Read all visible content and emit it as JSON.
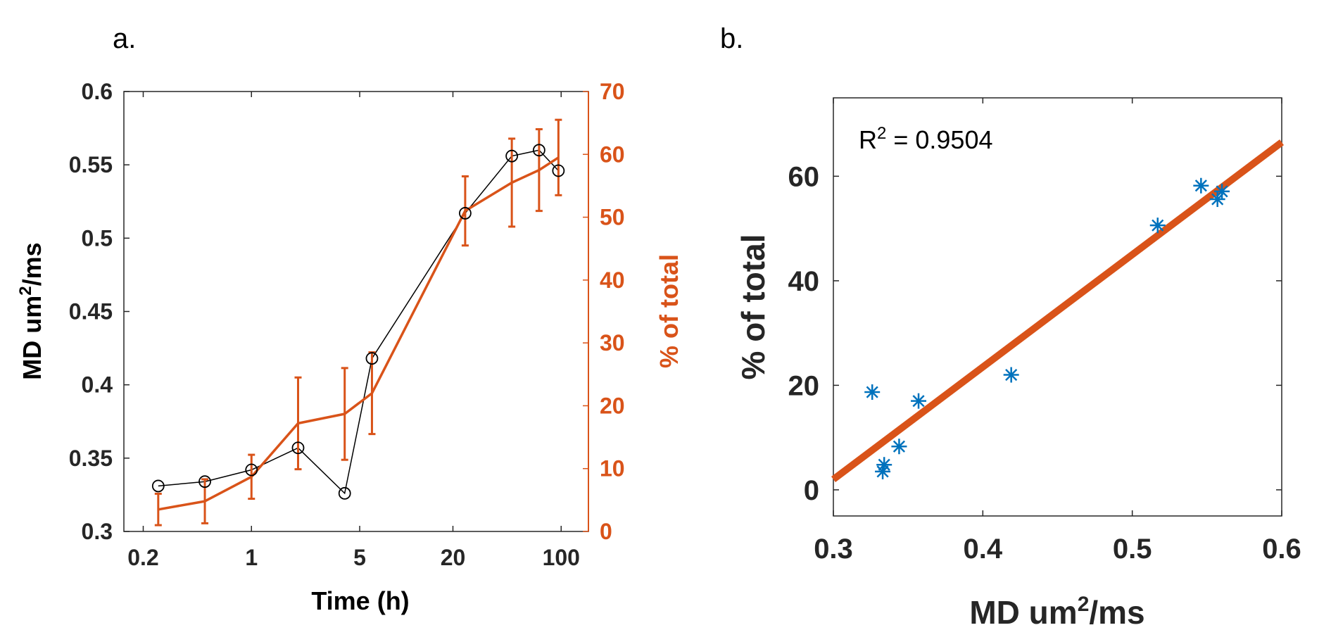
{
  "colors": {
    "md_line": "#000000",
    "pct_line": "#D95319",
    "scatter": "#0072BD",
    "fit_line": "#D95319",
    "axis": "#262626"
  },
  "chart_data": [
    {
      "panel": "a.",
      "type": "line",
      "xlabel": "Time (h)",
      "xscale": "log",
      "xlim": [
        0.15,
        150
      ],
      "xticks": [
        0.2,
        1,
        5,
        20,
        100
      ],
      "xtick_labels": [
        "0.2",
        "1",
        "5",
        "20",
        "100"
      ],
      "ylabel_left": "MD um",
      "ylabel_left_sup": "2",
      "ylabel_left_tail": "/ms",
      "ylim_left": [
        0.3,
        0.6
      ],
      "yticks_left": [
        "0.3",
        "0.35",
        "0.4",
        "0.45",
        "0.5",
        "0.55",
        "0.6"
      ],
      "ylabel_right": "% of total",
      "ylim_right": [
        0,
        70
      ],
      "yticks_right": [
        "0",
        "10",
        "20",
        "30",
        "40",
        "50",
        "60",
        "70"
      ],
      "series": [
        {
          "name": "MD",
          "axis": "left",
          "marker": "circle",
          "x": [
            0.25,
            0.5,
            1,
            2,
            4,
            6,
            24,
            48,
            72,
            96
          ],
          "y": [
            0.331,
            0.334,
            0.342,
            0.357,
            0.326,
            0.418,
            0.517,
            0.556,
            0.56,
            0.546
          ]
        },
        {
          "name": "% of total",
          "axis": "right",
          "x": [
            0.25,
            0.5,
            1,
            2,
            4,
            6,
            24,
            48,
            72,
            96
          ],
          "y": [
            3.5,
            4.8,
            8.7,
            17.2,
            18.7,
            22,
            51,
            55.5,
            57.5,
            59.5
          ],
          "err": [
            2.5,
            3.5,
            3.5,
            7.3,
            7.3,
            6.5,
            5.5,
            7.0,
            6.5,
            6.0
          ]
        }
      ]
    },
    {
      "panel": "b.",
      "type": "scatter",
      "xlabel": "MD um",
      "xlabel_sup": "2",
      "xlabel_tail": "/ms",
      "xlim": [
        0.3,
        0.6
      ],
      "xticks": [
        "0.3",
        "0.4",
        "0.5",
        "0.6"
      ],
      "ylabel": "% of total",
      "ylim": [
        -5,
        75
      ],
      "yticks": [
        "0",
        "20",
        "40",
        "60"
      ],
      "annotation": {
        "text": "R",
        "sup": "2",
        "tail": " = 0.9504"
      },
      "points": {
        "x": [
          0.326,
          0.333,
          0.334,
          0.344,
          0.357,
          0.419,
          0.517,
          0.546,
          0.557,
          0.56
        ],
        "y": [
          18.7,
          3.5,
          4.8,
          8.3,
          17.0,
          22.0,
          50.6,
          58.2,
          55.6,
          57.1
        ]
      },
      "fit": {
        "x": [
          0.3,
          0.6
        ],
        "y": [
          2.0,
          66.5
        ]
      }
    }
  ]
}
